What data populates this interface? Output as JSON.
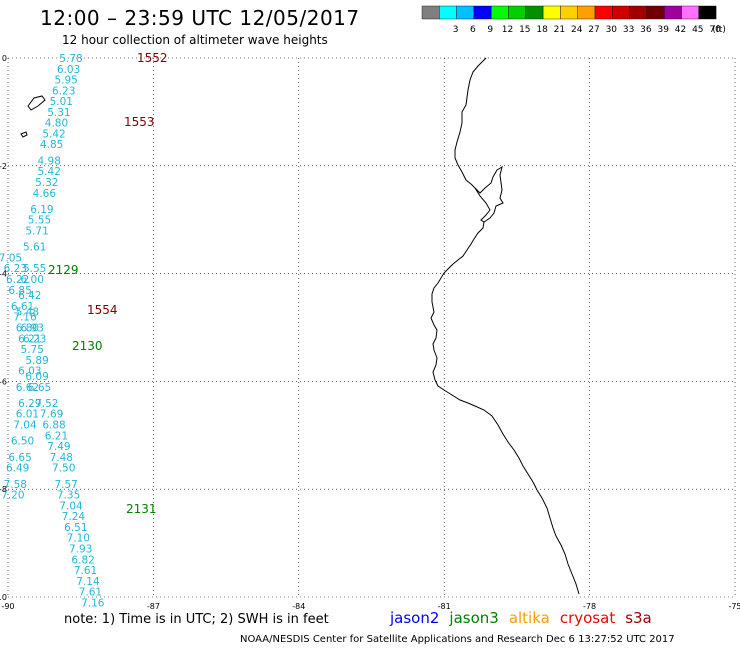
{
  "title": "12:00 – 23:59 UTC 12/05/2017",
  "subtitle": "12 hour collection of altimeter wave heights",
  "color_scale": {
    "unit_label": "(ft)",
    "bins": [
      {
        "label": "",
        "color": "#7f7f7f"
      },
      {
        "label": "3",
        "color": "#00ffff"
      },
      {
        "label": "6",
        "color": "#00c0ff"
      },
      {
        "label": "9",
        "color": "#0000ff"
      },
      {
        "label": "12",
        "color": "#00ff00"
      },
      {
        "label": "15",
        "color": "#00d000"
      },
      {
        "label": "18",
        "color": "#009000"
      },
      {
        "label": "21",
        "color": "#ffff00"
      },
      {
        "label": "24",
        "color": "#ffd000"
      },
      {
        "label": "27",
        "color": "#ffa000"
      },
      {
        "label": "30",
        "color": "#ff0000"
      },
      {
        "label": "33",
        "color": "#d00000"
      },
      {
        "label": "36",
        "color": "#a00000"
      },
      {
        "label": "39",
        "color": "#700000"
      },
      {
        "label": "42",
        "color": "#a000a0"
      },
      {
        "label": "45",
        "color": "#ff70ff"
      },
      {
        "label": "70",
        "color": "#000000"
      }
    ]
  },
  "map": {
    "lon_range": [
      -90,
      -75
    ],
    "lat_range": [
      -10,
      0
    ],
    "lon_ticks": [
      "-90",
      "-87",
      "-84",
      "-81",
      "-78",
      "-75"
    ],
    "lat_ticks": [
      "0",
      "-2",
      "-4",
      "-6",
      "-8",
      "-10"
    ],
    "grid": "dotted"
  },
  "tracks": [
    {
      "label": "1552",
      "color": "#800000"
    },
    {
      "label": "1553",
      "color": "#800000"
    },
    {
      "label": "1554",
      "color": "#800000"
    },
    {
      "label": "2129",
      "color": "#008000"
    },
    {
      "label": "2130",
      "color": "#008000"
    },
    {
      "label": "2131",
      "color": "#008000"
    }
  ],
  "wave_heights": [
    {
      "value": "5.78",
      "lon": -88.7,
      "lat": 0.0
    },
    {
      "value": "6.03",
      "lon": -88.75,
      "lat": -0.2
    },
    {
      "value": "5.95",
      "lon": -88.8,
      "lat": -0.4
    },
    {
      "value": "6.23",
      "lon": -88.85,
      "lat": -0.6
    },
    {
      "value": "5.01",
      "lon": -88.9,
      "lat": -0.8
    },
    {
      "value": "5.31",
      "lon": -88.95,
      "lat": -1.0
    },
    {
      "value": "4.80",
      "lon": -89.0,
      "lat": -1.2
    },
    {
      "value": "5.42",
      "lon": -89.05,
      "lat": -1.4
    },
    {
      "value": "4.85",
      "lon": -89.1,
      "lat": -1.6
    },
    {
      "value": "4.98",
      "lon": -89.15,
      "lat": -1.9
    },
    {
      "value": "5.42",
      "lon": -89.15,
      "lat": -2.1
    },
    {
      "value": "5.32",
      "lon": -89.2,
      "lat": -2.3
    },
    {
      "value": "4.66",
      "lon": -89.25,
      "lat": -2.5
    },
    {
      "value": "6.19",
      "lon": -89.3,
      "lat": -2.8
    },
    {
      "value": "5.55",
      "lon": -89.35,
      "lat": -3.0
    },
    {
      "value": "5.71",
      "lon": -89.4,
      "lat": -3.2
    },
    {
      "value": "5.61",
      "lon": -89.45,
      "lat": -3.5
    },
    {
      "value": "7.05",
      "lon": -89.95,
      "lat": -3.7
    },
    {
      "value": "6.23",
      "lon": -89.85,
      "lat": -3.9
    },
    {
      "value": "5.55",
      "lon": -89.45,
      "lat": -3.9
    },
    {
      "value": "6.22",
      "lon": -89.8,
      "lat": -4.1
    },
    {
      "value": "6.00",
      "lon": -89.5,
      "lat": -4.1
    },
    {
      "value": "6.85",
      "lon": -89.75,
      "lat": -4.3
    },
    {
      "value": "6.42",
      "lon": -89.55,
      "lat": -4.4
    },
    {
      "value": "6.61",
      "lon": -89.7,
      "lat": -4.6
    },
    {
      "value": "5.48",
      "lon": -89.6,
      "lat": -4.7
    },
    {
      "value": "7.16",
      "lon": -89.65,
      "lat": -4.8
    },
    {
      "value": "6.80",
      "lon": -89.6,
      "lat": -5.0
    },
    {
      "value": "6.93",
      "lon": -89.5,
      "lat": -5.0
    },
    {
      "value": "6.21",
      "lon": -89.55,
      "lat": -5.2
    },
    {
      "value": "6.23",
      "lon": -89.45,
      "lat": -5.2
    },
    {
      "value": "5.75",
      "lon": -89.5,
      "lat": -5.4
    },
    {
      "value": "5.89",
      "lon": -89.4,
      "lat": -5.6
    },
    {
      "value": "6.03",
      "lon": -89.55,
      "lat": -5.8
    },
    {
      "value": "6.09",
      "lon": -89.4,
      "lat": -5.9
    },
    {
      "value": "6.62",
      "lon": -89.6,
      "lat": -6.1
    },
    {
      "value": "6.65",
      "lon": -89.35,
      "lat": -6.1
    },
    {
      "value": "6.29",
      "lon": -89.55,
      "lat": -6.4
    },
    {
      "value": "7.52",
      "lon": -89.2,
      "lat": -6.4
    },
    {
      "value": "6.01",
      "lon": -89.6,
      "lat": -6.6
    },
    {
      "value": "7.69",
      "lon": -89.1,
      "lat": -6.6
    },
    {
      "value": "7.04",
      "lon": -89.65,
      "lat": -6.8
    },
    {
      "value": "6.88",
      "lon": -89.05,
      "lat": -6.8
    },
    {
      "value": "6.21",
      "lon": -89.0,
      "lat": -7.0
    },
    {
      "value": "6.50",
      "lon": -89.7,
      "lat": -7.1
    },
    {
      "value": "7.49",
      "lon": -88.95,
      "lat": -7.2
    },
    {
      "value": "6.65",
      "lon": -89.75,
      "lat": -7.4
    },
    {
      "value": "7.48",
      "lon": -88.9,
      "lat": -7.4
    },
    {
      "value": "6.49",
      "lon": -89.8,
      "lat": -7.6
    },
    {
      "value": "7.50",
      "lon": -88.85,
      "lat": -7.6
    },
    {
      "value": "7.58",
      "lon": -89.85,
      "lat": -7.9
    },
    {
      "value": "7.57",
      "lon": -88.8,
      "lat": -7.9
    },
    {
      "value": "7.20",
      "lon": -89.9,
      "lat": -8.1
    },
    {
      "value": "7.35",
      "lon": -88.75,
      "lat": -8.1
    },
    {
      "value": "7.04",
      "lon": -88.7,
      "lat": -8.3
    },
    {
      "value": "7.24",
      "lon": -88.65,
      "lat": -8.5
    },
    {
      "value": "6.51",
      "lon": -88.6,
      "lat": -8.7
    },
    {
      "value": "7.10",
      "lon": -88.55,
      "lat": -8.9
    },
    {
      "value": "7.93",
      "lon": -88.5,
      "lat": -9.1
    },
    {
      "value": "6.82",
      "lon": -88.45,
      "lat": -9.3
    },
    {
      "value": "7.61",
      "lon": -88.4,
      "lat": -9.5
    },
    {
      "value": "7.14",
      "lon": -88.35,
      "lat": -9.7
    },
    {
      "value": "7.61",
      "lon": -88.3,
      "lat": -9.9
    },
    {
      "value": "7.16",
      "lon": -88.25,
      "lat": -10.1
    }
  ],
  "note": "note:  1) Time is in UTC;  2) SWH is in feet",
  "legend": [
    {
      "label": "jason2",
      "color": "#0000ff"
    },
    {
      "label": "jason3",
      "color": "#008000"
    },
    {
      "label": "altika",
      "color": "#ffa000"
    },
    {
      "label": "cryosat",
      "color": "#ff0000"
    },
    {
      "label": "s3a",
      "color": "#a00000"
    }
  ],
  "credit": "NOAA/NESDIS Center for Satellite Applications and Research    Dec  6 13:27:52 UTC 2017"
}
